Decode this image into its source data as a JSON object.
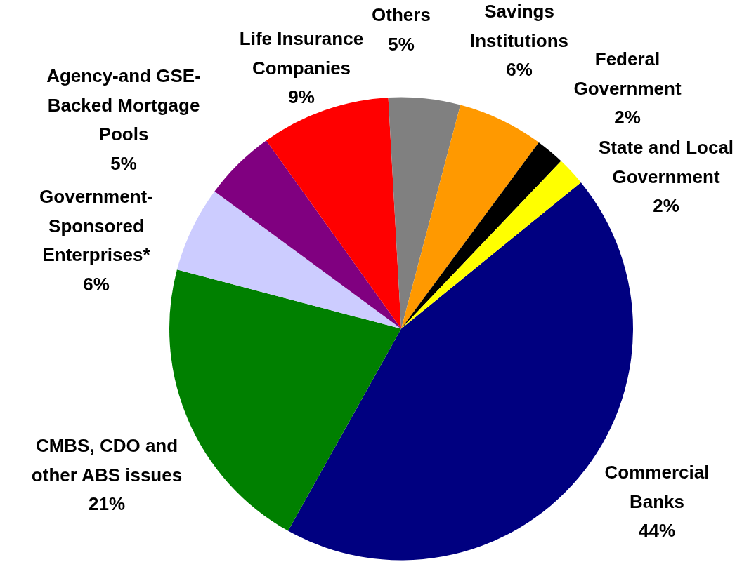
{
  "chart_data": {
    "type": "pie",
    "categories": [
      "Commercial Banks",
      "CMBS, CDO and other ABS issues",
      "Government-Sponsored Enterprises*",
      "Agency-and GSE-Backed Mortgage Pools",
      "Life Insurance Companies",
      "Others",
      "Savings Institutions",
      "Federal Government",
      "State and Local Government"
    ],
    "values": [
      44,
      21,
      6,
      5,
      9,
      5,
      6,
      2,
      2
    ],
    "value_labels": [
      "44%",
      "21%",
      "6%",
      "5%",
      "9%",
      "5%",
      "6%",
      "2%",
      "2%"
    ],
    "colors": [
      "#000080",
      "#008000",
      "#ccccff",
      "#800080",
      "#ff0000",
      "#808080",
      "#ff9900",
      "#000000",
      "#ffff00"
    ]
  }
}
